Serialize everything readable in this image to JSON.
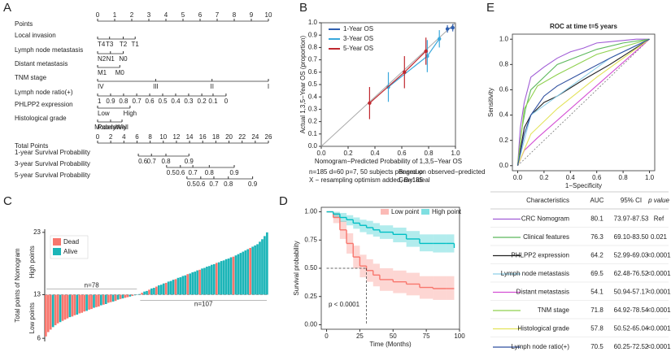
{
  "chart_data": [
    {
      "type": "nomogram",
      "panel": "A",
      "points": {
        "label": "Points",
        "xlim": [
          0,
          10
        ],
        "ticks": [
          0,
          1,
          2,
          3,
          4,
          5,
          6,
          7,
          8,
          9,
          10
        ]
      },
      "predictors": [
        {
          "label": "Local invasion",
          "ticks": [
            {
              "value": 0,
              "label": "T4"
            },
            {
              "value": 0.7,
              "label": "T3"
            },
            {
              "value": 1.5,
              "label": "T2"
            },
            {
              "value": 2.2,
              "label": "T1"
            }
          ]
        },
        {
          "label": "Lymph node metastasis",
          "ticks": [
            {
              "value": 0,
              "label": "N2"
            },
            {
              "value": 0.75,
              "label": "N1"
            },
            {
              "value": 1.5,
              "label": "N0"
            }
          ]
        },
        {
          "label": "Distant metastasis",
          "ticks": [
            {
              "value": 0,
              "label": "M1"
            },
            {
              "value": 1.3,
              "label": "M0"
            }
          ]
        },
        {
          "label": "TNM stage",
          "ticks": [
            {
              "value": 0,
              "label": "IV"
            },
            {
              "value": 3.4,
              "label": "III"
            },
            {
              "value": 6.7,
              "label": "II"
            },
            {
              "value": 10,
              "label": "I"
            }
          ]
        },
        {
          "label": "Lymph node ratio(+)",
          "ticks": [
            {
              "value": 0,
              "label": "1"
            },
            {
              "value": 0.76,
              "label": "0.9"
            },
            {
              "value": 1.52,
              "label": "0.8"
            },
            {
              "value": 2.29,
              "label": "0.7"
            },
            {
              "value": 3.05,
              "label": "0.6"
            },
            {
              "value": 3.81,
              "label": "0.5"
            },
            {
              "value": 4.57,
              "label": "0.4"
            },
            {
              "value": 5.33,
              "label": "0.3"
            },
            {
              "value": 6.1,
              "label": "0.2"
            },
            {
              "value": 6.76,
              "label": "0.1"
            },
            {
              "value": 7.52,
              "label": "0"
            }
          ]
        },
        {
          "label": "PHLPP2 expression",
          "ticks": [
            {
              "value": 0,
              "label": "Low"
            },
            {
              "value": 1.9,
              "label": "High"
            }
          ]
        },
        {
          "label": "Histological grade",
          "ticks": [
            {
              "value": 0,
              "label": "Poorly"
            },
            {
              "value": 0.76,
              "label": "Moderately"
            },
            {
              "value": 1.43,
              "label": "Well"
            }
          ]
        }
      ],
      "total": {
        "label": "Total Points",
        "xlim": [
          0,
          26
        ],
        "ticks": [
          0,
          2,
          4,
          6,
          8,
          10,
          12,
          14,
          16,
          18,
          20,
          22,
          24,
          26
        ]
      },
      "outcomes": [
        {
          "label": "1-year Survival Probability",
          "ticks": [
            {
              "value": 6.2,
              "label": "0.6"
            },
            {
              "value": 8.2,
              "label": "0.7"
            },
            {
              "value": 10.4,
              "label": "0.8"
            },
            {
              "value": 13.9,
              "label": "0.9"
            }
          ]
        },
        {
          "label": "3-year Survival Probability",
          "ticks": [
            {
              "value": 10.5,
              "label": "0.5"
            },
            {
              "value": 12.6,
              "label": "0.6"
            },
            {
              "value": 14.5,
              "label": "0.7"
            },
            {
              "value": 17,
              "label": "0.8"
            },
            {
              "value": 20.8,
              "label": "0.9"
            }
          ]
        },
        {
          "label": "5-year Survival Probability",
          "ticks": [
            {
              "value": 13.6,
              "label": "0.5"
            },
            {
              "value": 15.7,
              "label": "0.6"
            },
            {
              "value": 17.7,
              "label": "0.7"
            },
            {
              "value": 19.9,
              "label": "0.8"
            },
            {
              "value": 23.6,
              "label": "0.9"
            }
          ]
        }
      ]
    },
    {
      "type": "calibration",
      "panel": "B",
      "x_label": "Nomogram−Predicted Probability of 1,3,5−Year OS",
      "y_label": "Actual 1,3,5−Year OS (proportion)",
      "notes": [
        "n=185 d=60 p=7, 50 subjects per group",
        "X − resampling optimism added, B=185",
        "Based on observed−predicted",
        "Gray: ideal"
      ],
      "xlim": [
        0,
        1
      ],
      "ylim": [
        0,
        1
      ],
      "xticks": [
        {
          "value": 0,
          "label": "0.0"
        },
        {
          "value": 0.2,
          "label": "0.2"
        },
        {
          "value": 0.4,
          "label": "0.4"
        },
        {
          "value": 0.6,
          "label": "0.6"
        },
        {
          "value": 0.8,
          "label": "0.8"
        },
        {
          "value": 1,
          "label": "1.0"
        }
      ],
      "yticks": [
        {
          "value": 0,
          "label": "0.0"
        },
        0.1,
        0.2,
        0.3,
        0.4,
        0.5,
        0.6,
        0.7,
        0.8,
        0.9,
        {
          "value": 1,
          "label": "1.0"
        }
      ],
      "series": [
        {
          "name": "1-Year OS",
          "color": "#2f5fb0",
          "x": [
            0.94,
            0.98
          ],
          "values": [
            0.95,
            0.96
          ],
          "errors": [
            0.03,
            0.03
          ]
        },
        {
          "name": "3-Year OS",
          "color": "#3aa8dc",
          "x": [
            0.5,
            0.79,
            0.88
          ],
          "values": [
            0.48,
            0.73,
            0.87
          ],
          "errors": [
            0.12,
            0.13,
            0.07
          ]
        },
        {
          "name": "5-Year OS",
          "color": "#c0282f",
          "x": [
            0.36,
            0.62,
            0.78
          ],
          "values": [
            0.35,
            0.6,
            0.77
          ],
          "errors": [
            0.13,
            0.13,
            0.11
          ]
        }
      ]
    },
    {
      "type": "waterfall",
      "panel": "C",
      "y_label": "Total points of  Nomogram",
      "upper_label": "High points",
      "lower_label": "Low points",
      "group_labels": [
        "n=78",
        "n=107"
      ],
      "ylim": [
        5.5,
        23.5
      ],
      "yticks": [
        6,
        13,
        23
      ],
      "baseline": 13,
      "series": [
        {
          "name": "Dead",
          "color": "#f8766d"
        },
        {
          "name": "Alive",
          "color": "#1cb5b8"
        }
      ],
      "values": [
        6.3,
        7.0,
        7.4,
        7.8,
        8.1,
        8.4,
        8.6,
        8.8,
        9.0,
        9.2,
        9.4,
        9.5,
        9.7,
        9.8,
        10.0,
        10.1,
        10.3,
        10.4,
        10.6,
        10.7,
        10.9,
        11.0,
        11.1,
        11.3,
        11.4,
        11.5,
        11.7,
        11.8,
        11.9,
        12.0,
        12.2,
        12.3,
        12.4,
        12.5,
        12.6,
        12.7,
        12.8,
        12.9,
        12.95,
        13.1,
        13.3,
        13.5,
        13.6,
        13.8,
        14.0,
        14.1,
        14.3,
        14.5,
        14.6,
        14.8,
        14.9,
        15.1,
        15.2,
        15.4,
        15.5,
        15.7,
        15.8,
        16.0,
        16.1,
        16.3,
        16.4,
        16.6,
        16.7,
        16.9,
        17.0,
        17.2,
        17.3,
        17.5,
        17.6,
        17.8,
        17.9,
        18.1,
        18.2,
        18.4,
        18.5,
        18.7,
        18.8,
        19.0,
        19.1,
        19.3,
        19.5,
        19.7,
        19.9,
        20.1,
        20.3,
        20.5,
        20.7,
        20.9,
        21.1,
        21.5,
        21.9,
        22.4,
        23.0
      ],
      "status": [
        0,
        0,
        0,
        1,
        0,
        0,
        1,
        0,
        0,
        0,
        1,
        0,
        0,
        1,
        0,
        0,
        0,
        1,
        0,
        0,
        1,
        0,
        0,
        1,
        0,
        1,
        0,
        0,
        1,
        0,
        1,
        0,
        1,
        0,
        0,
        1,
        0,
        1,
        1,
        1,
        0,
        1,
        1,
        0,
        1,
        1,
        0,
        1,
        1,
        1,
        0,
        1,
        1,
        1,
        0,
        1,
        1,
        1,
        1,
        0,
        1,
        1,
        1,
        1,
        0,
        1,
        1,
        1,
        1,
        1,
        1,
        0,
        1,
        1,
        1,
        1,
        1,
        1,
        0,
        1,
        1,
        1,
        1,
        1,
        1,
        0,
        1,
        1,
        1,
        1,
        1,
        1,
        1
      ]
    },
    {
      "type": "km",
      "panel": "D",
      "x_label": "Time  (Months)",
      "y_label": "Survival probability",
      "annotation": "p < 0.0001",
      "xlim": [
        -4,
        100
      ],
      "ylim": [
        -0.04,
        1.04
      ],
      "xticks": [
        0,
        25,
        50,
        75,
        100
      ],
      "yticks": [
        {
          "value": 0,
          "label": "0.00"
        },
        0.25,
        {
          "value": 0.5,
          "label": "0.50"
        },
        0.75,
        {
          "value": 1,
          "label": "1.00"
        }
      ],
      "series": [
        {
          "name": "Low point",
          "color": "#f8766d",
          "x": [
            0,
            5,
            10,
            15,
            20,
            25,
            30,
            35,
            40,
            50,
            60,
            70,
            80,
            90,
            96
          ],
          "values": [
            1,
            0.95,
            0.84,
            0.72,
            0.6,
            0.52,
            0.48,
            0.44,
            0.4,
            0.38,
            0.36,
            0.33,
            0.32,
            0.32,
            0.32
          ],
          "lower": [
            1,
            0.9,
            0.76,
            0.63,
            0.5,
            0.42,
            0.38,
            0.34,
            0.3,
            0.28,
            0.26,
            0.23,
            0.22,
            0.22,
            0.22
          ],
          "upper": [
            1,
            0.99,
            0.92,
            0.81,
            0.7,
            0.62,
            0.58,
            0.54,
            0.5,
            0.48,
            0.46,
            0.43,
            0.43,
            0.43,
            0.43
          ]
        },
        {
          "name": "High point",
          "color": "#00bfc4",
          "x": [
            0,
            5,
            10,
            15,
            20,
            25,
            30,
            35,
            40,
            50,
            60,
            70,
            80,
            90,
            96
          ],
          "values": [
            1,
            0.98,
            0.95,
            0.93,
            0.9,
            0.88,
            0.86,
            0.84,
            0.82,
            0.8,
            0.76,
            0.72,
            0.72,
            0.72,
            0.68
          ],
          "lower": [
            1,
            0.95,
            0.91,
            0.88,
            0.85,
            0.82,
            0.8,
            0.78,
            0.76,
            0.73,
            0.69,
            0.65,
            0.64,
            0.64,
            0.6
          ],
          "upper": [
            1,
            1,
            0.99,
            0.97,
            0.95,
            0.93,
            0.92,
            0.9,
            0.88,
            0.86,
            0.83,
            0.8,
            0.8,
            0.8,
            0.77
          ]
        }
      ]
    },
    {
      "type": "roc",
      "panel": "E",
      "title": "ROC at time t=5 years",
      "x_label": "1−Specificity",
      "y_label": "Sensitivity",
      "xlim": [
        -0.04,
        1.04
      ],
      "ylim": [
        -0.04,
        1.04
      ],
      "xticks": [
        {
          "value": 0,
          "label": "0.0"
        },
        0.2,
        0.4,
        0.6,
        0.8,
        {
          "value": 1,
          "label": "1.0"
        }
      ],
      "yticks": [
        {
          "value": 0,
          "label": "0.0"
        },
        0.2,
        0.4,
        0.6,
        0.8,
        {
          "value": 1,
          "label": "1.0"
        }
      ],
      "columns": [
        "Characteristics",
        "AUC",
        "95% CI",
        "p value"
      ],
      "series": [
        {
          "name": "CRC Nomogram",
          "color": "#a05cd6",
          "auc": 80.1,
          "ci": "73.97-87.53",
          "p": "Ref",
          "x": [
            0,
            0.02,
            0.05,
            0.1,
            0.2,
            0.3,
            0.4,
            0.5,
            0.6,
            0.7,
            0.8,
            0.9,
            1
          ],
          "values": [
            0,
            0.3,
            0.5,
            0.7,
            0.78,
            0.85,
            0.9,
            0.93,
            0.97,
            0.98,
            0.99,
            1,
            1
          ]
        },
        {
          "name": "Clinical features",
          "color": "#5cb85c",
          "auc": 76.3,
          "ci": "69.10-83.50",
          "p": "0.021",
          "x": [
            0,
            0.03,
            0.06,
            0.1,
            0.2,
            0.3,
            0.4,
            0.5,
            0.6,
            0.8,
            1
          ],
          "values": [
            0,
            0.28,
            0.45,
            0.6,
            0.7,
            0.8,
            0.84,
            0.88,
            0.92,
            0.97,
            1
          ]
        },
        {
          "name": "PHLPP2 expression",
          "color": "#222222",
          "auc": 64.2,
          "ci": "52.99-69.03",
          "p": "<0.0001",
          "x": [
            0,
            0.05,
            0.1,
            0.2,
            0.3,
            0.5,
            0.7,
            1
          ],
          "values": [
            0,
            0.3,
            0.4,
            0.5,
            0.55,
            0.68,
            0.8,
            1
          ]
        },
        {
          "name": "Lymph node metastasis",
          "color": "#8ecfe8",
          "auc": 69.5,
          "ci": "62.48-76.52",
          "p": "<0.0001",
          "x": [
            0,
            0.1,
            0.3,
            0.5,
            0.7,
            1
          ],
          "values": [
            0,
            0.4,
            0.55,
            0.7,
            0.85,
            1
          ]
        },
        {
          "name": "Distant metastasis",
          "color": "#d44fd4",
          "auc": 54.1,
          "ci": "50.94-57.17",
          "p": "<0.0001",
          "x": [
            0,
            0.05,
            0.15,
            1
          ],
          "values": [
            0,
            0.12,
            0.22,
            1
          ]
        },
        {
          "name": "TNM stage",
          "color": "#8fd14f",
          "auc": 71.8,
          "ci": "64.92-78.54",
          "p": "<0.0001",
          "x": [
            0,
            0.05,
            0.15,
            0.3,
            0.6,
            1
          ],
          "values": [
            0,
            0.45,
            0.63,
            0.72,
            0.88,
            1
          ]
        },
        {
          "name": "Histological grade",
          "color": "#e3e35a",
          "auc": 57.8,
          "ci": "50.52-65.04",
          "p": "<0.0001",
          "x": [
            0,
            0.1,
            0.3,
            0.6,
            1
          ],
          "values": [
            0,
            0.25,
            0.45,
            0.7,
            1
          ]
        },
        {
          "name": "Lymph node ratio(+)",
          "color": "#2f4f9f",
          "auc": 70.5,
          "ci": "60.25-72.52",
          "p": "<0.0001",
          "x": [
            0,
            0.05,
            0.1,
            0.2,
            0.3,
            0.5,
            0.7,
            1
          ],
          "values": [
            0,
            0.25,
            0.4,
            0.55,
            0.63,
            0.74,
            0.85,
            1
          ]
        }
      ]
    }
  ]
}
